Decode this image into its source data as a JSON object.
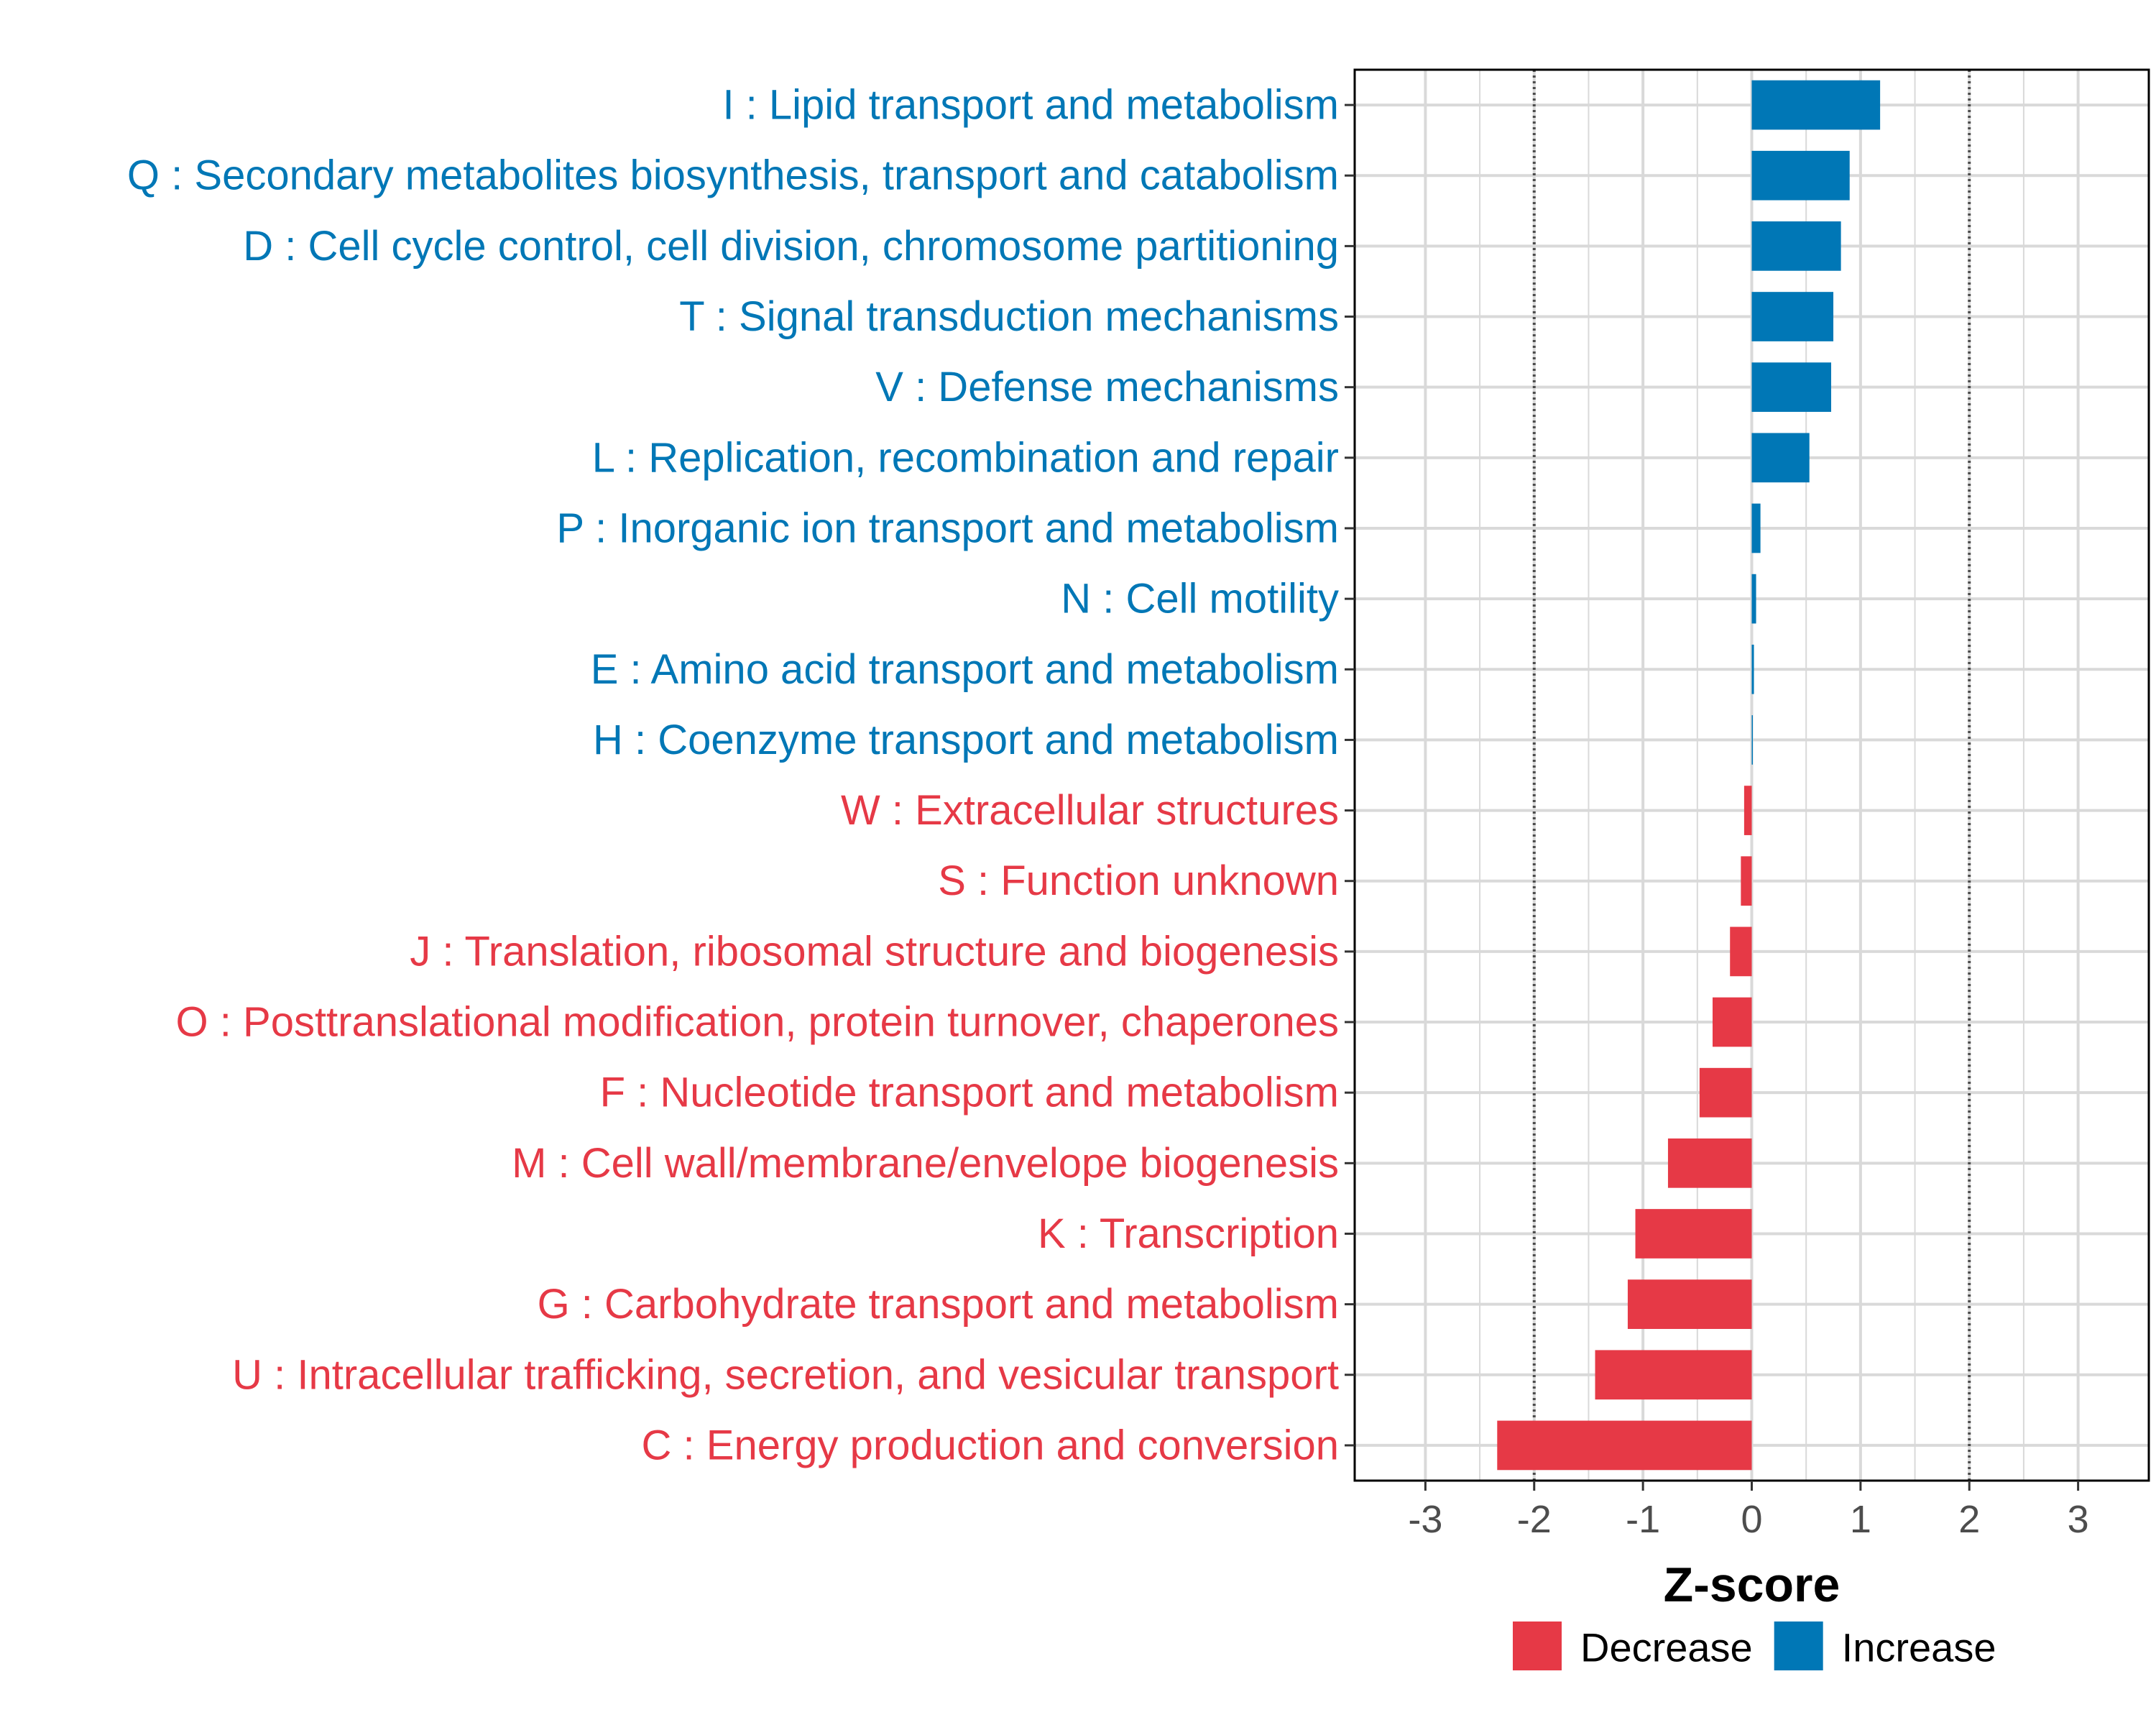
{
  "chart_data": {
    "type": "bar",
    "orientation": "horizontal",
    "xlabel": "Z-score",
    "xlim": [
      -3.65,
      3.65
    ],
    "xticks": [
      -3,
      -2,
      -1,
      0,
      1,
      2,
      3
    ],
    "xtick_labels": [
      "-3",
      "-2",
      "-1",
      "0",
      "1",
      "2",
      "3"
    ],
    "reference_lines": [
      -2,
      2
    ],
    "grid": true,
    "colors": {
      "Decrease": "#e63946",
      "Increase": "#0077b6",
      "grid": "#d9d9d9",
      "refline": "#4d4d4d"
    },
    "legend": {
      "position": "bottom",
      "items": [
        {
          "label": "Decrease",
          "color": "#e63946"
        },
        {
          "label": "Increase",
          "color": "#0077b6"
        }
      ]
    },
    "categories": [
      {
        "label": "I : Lipid transport and metabolism",
        "value": 1.18,
        "group": "Increase"
      },
      {
        "label": "Q : Secondary metabolites biosynthesis, transport and catabolism",
        "value": 0.9,
        "group": "Increase"
      },
      {
        "label": "D : Cell cycle control, cell division, chromosome partitioning",
        "value": 0.82,
        "group": "Increase"
      },
      {
        "label": "T : Signal transduction mechanisms",
        "value": 0.75,
        "group": "Increase"
      },
      {
        "label": "V : Defense mechanisms",
        "value": 0.73,
        "group": "Increase"
      },
      {
        "label": "L : Replication, recombination and repair",
        "value": 0.53,
        "group": "Increase"
      },
      {
        "label": "P : Inorganic ion transport and metabolism",
        "value": 0.08,
        "group": "Increase"
      },
      {
        "label": "N : Cell motility",
        "value": 0.04,
        "group": "Increase"
      },
      {
        "label": "E : Amino acid transport and metabolism",
        "value": 0.02,
        "group": "Increase"
      },
      {
        "label": "H : Coenzyme transport and metabolism",
        "value": 0.01,
        "group": "Increase"
      },
      {
        "label": "W : Extracellular structures",
        "value": -0.07,
        "group": "Decrease"
      },
      {
        "label": "S : Function unknown",
        "value": -0.1,
        "group": "Decrease"
      },
      {
        "label": "J : Translation, ribosomal structure and biogenesis",
        "value": -0.2,
        "group": "Decrease"
      },
      {
        "label": "O : Posttranslational modification, protein turnover, chaperones",
        "value": -0.36,
        "group": "Decrease"
      },
      {
        "label": "F : Nucleotide transport and metabolism",
        "value": -0.48,
        "group": "Decrease"
      },
      {
        "label": "M : Cell wall/membrane/envelope biogenesis",
        "value": -0.77,
        "group": "Decrease"
      },
      {
        "label": "K : Transcription",
        "value": -1.07,
        "group": "Decrease"
      },
      {
        "label": "G : Carbohydrate transport and metabolism",
        "value": -1.14,
        "group": "Decrease"
      },
      {
        "label": "U : Intracellular trafficking, secretion, and vesicular transport",
        "value": -1.44,
        "group": "Decrease"
      },
      {
        "label": "C : Energy production and conversion",
        "value": -2.34,
        "group": "Decrease"
      }
    ]
  }
}
